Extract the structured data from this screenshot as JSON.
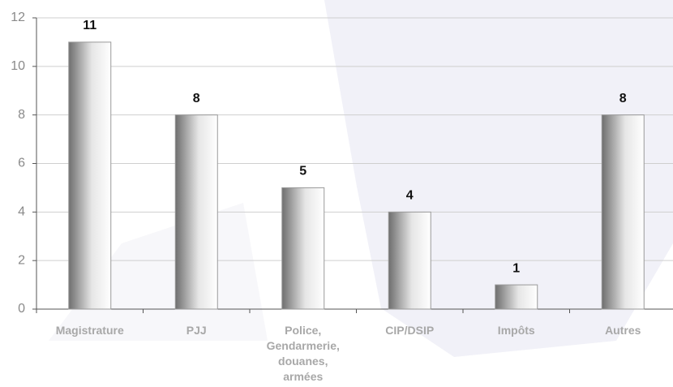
{
  "chart_data": {
    "type": "bar",
    "categories": [
      "Magistrature",
      "PJJ",
      "Police, Gendarmerie, douanes, armées",
      "CIP/DSIP",
      "Impôts",
      "Autres"
    ],
    "values": [
      11,
      8,
      5,
      4,
      1,
      8
    ],
    "ylim": [
      0,
      12
    ],
    "yticks": [
      0,
      2,
      4,
      6,
      8,
      10,
      12
    ],
    "grid": true
  }
}
